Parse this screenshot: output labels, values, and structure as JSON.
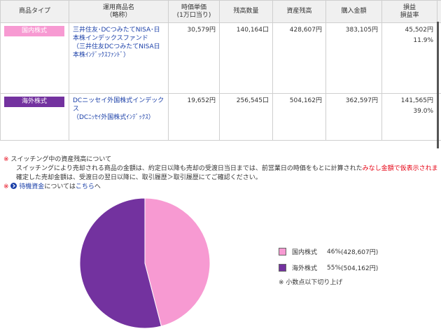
{
  "table": {
    "headers": {
      "type": "商品タイプ",
      "name_line1": "運用商品名",
      "name_line2": "（略称）",
      "unit_price_line1": "時価単価",
      "unit_price_line2": "(1万口当り)",
      "quantity": "残高数量",
      "balance": "資産残高",
      "purchase": "購入金額",
      "pl_line1": "損益",
      "pl_line2": "損益率"
    },
    "rows": [
      {
        "type": "国内株式",
        "name_full": "三井住友･DCつみたてNISA･日本株インデックスファンド",
        "name_short": "（三井住友DCつみたてNISA日本株ｲﾝﾃﾞｯｸｽﾌｧﾝﾄﾞ）",
        "unit_price": "30,579円",
        "quantity": "140,164口",
        "balance": "428,607円",
        "purchase": "383,105円",
        "pl": "45,502円",
        "pl_rate": "11.9%"
      },
      {
        "type": "海外株式",
        "name_full": "DCニッセイ外国株式インデックス",
        "name_short": "（DCﾆｯｾｲ外国株式ｲﾝﾃﾞｯｸｽ）",
        "unit_price": "19,652円",
        "quantity": "256,545口",
        "balance": "504,162円",
        "purchase": "362,597円",
        "pl": "141,565円",
        "pl_rate": "39.0%"
      }
    ]
  },
  "notes": {
    "mark": "※",
    "switching_title": "スイッチング中の資産残高について",
    "switching_body_1": "スイッチングにより売却される商品の金額は、約定日以降も売却の受渡日当日までは、前営業日の時価をもとに計算された",
    "switching_body_1_red": "みなし金額で仮表示されま",
    "switching_body_2": "確定した売却金額は、受渡日の翌日以降に、取引履歴＞取引履歴にてご確認ください。",
    "waiting_funds_link": "待機資金",
    "waiting_funds_mid": "については",
    "waiting_funds_here": "こちら",
    "waiting_funds_end": "へ"
  },
  "chart_data": {
    "type": "pie",
    "categories": [
      "国内株式",
      "海外株式"
    ],
    "values": [
      428607,
      504162
    ],
    "percent_labels": [
      "46%",
      "55%"
    ],
    "amount_labels": [
      "(428,607円)",
      "(504,162円)"
    ],
    "colors": [
      "#f79ad2",
      "#73329f"
    ],
    "footnote": "※ 小数点以下切り上げ",
    "legend_position": "right"
  }
}
